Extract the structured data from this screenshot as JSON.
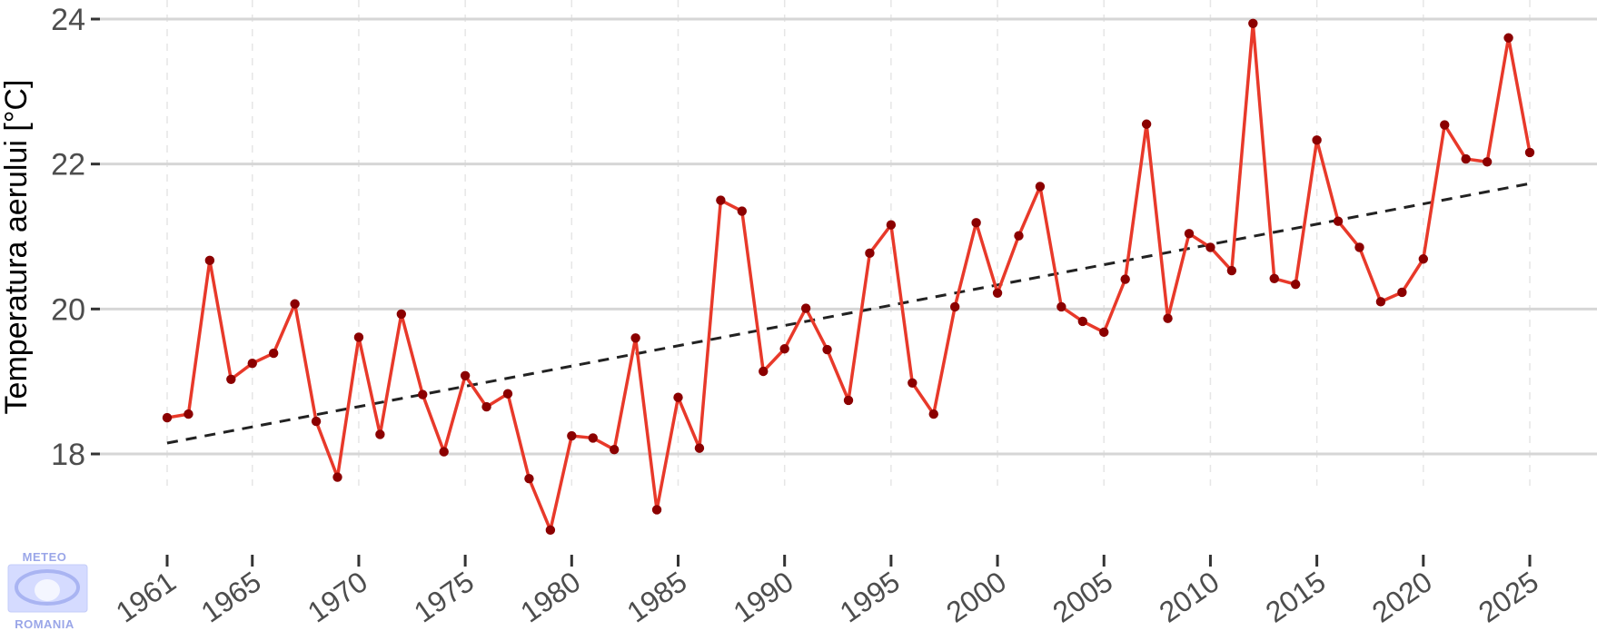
{
  "chart_data": {
    "type": "line",
    "title": "",
    "xlabel": "",
    "ylabel": "Temperatura aerului [°C]",
    "xlim": [
      1961,
      2025
    ],
    "ylim": [
      16.9,
      24.1
    ],
    "x_ticks": [
      1961,
      1965,
      1970,
      1975,
      1980,
      1985,
      1990,
      1995,
      2000,
      2005,
      2010,
      2015,
      2020,
      2025
    ],
    "x_tick_labels": [
      "1961",
      "1965",
      "1970",
      "1975",
      "1980",
      "1985",
      "1990",
      "1995",
      "2000",
      "2005",
      "2010",
      "2015",
      "2020",
      "2025"
    ],
    "y_ticks": [
      18,
      20,
      22,
      24
    ],
    "y_tick_labels": [
      "18",
      "20",
      "22",
      "24"
    ],
    "grid": true,
    "legend": "none",
    "x": [
      1961,
      1962,
      1963,
      1964,
      1965,
      1966,
      1967,
      1968,
      1969,
      1970,
      1971,
      1972,
      1973,
      1974,
      1975,
      1976,
      1977,
      1978,
      1979,
      1980,
      1981,
      1982,
      1983,
      1984,
      1985,
      1986,
      1987,
      1988,
      1989,
      1990,
      1991,
      1992,
      1993,
      1994,
      1995,
      1996,
      1997,
      1998,
      1999,
      2000,
      2001,
      2002,
      2003,
      2004,
      2005,
      2006,
      2007,
      2008,
      2009,
      2010,
      2011,
      2012,
      2013,
      2014,
      2015,
      2016,
      2017,
      2018,
      2019,
      2020,
      2021,
      2022,
      2023,
      2024,
      2025
    ],
    "series": [
      {
        "values": [
          18.5,
          18.55,
          20.67,
          19.03,
          19.25,
          19.39,
          20.07,
          18.45,
          17.68,
          19.61,
          18.27,
          19.93,
          18.82,
          18.03,
          19.08,
          18.65,
          18.83,
          17.66,
          16.95,
          18.25,
          18.22,
          18.06,
          19.6,
          17.23,
          18.78,
          18.08,
          21.5,
          21.35,
          19.14,
          19.45,
          20.01,
          19.44,
          18.74,
          20.77,
          21.16,
          18.98,
          18.55,
          20.03,
          21.19,
          20.22,
          21.01,
          21.69,
          20.03,
          19.83,
          19.68,
          20.41,
          22.55,
          19.87,
          21.04,
          20.85,
          20.53,
          23.94,
          20.42,
          20.34,
          22.33,
          21.21,
          20.85,
          20.1,
          20.23,
          20.69,
          22.54,
          22.07,
          22.03,
          23.74,
          22.16
        ],
        "color": "#e8392a",
        "marker_color": "#8b0000"
      }
    ],
    "trend": {
      "type": "linear",
      "start": [
        1961,
        18.15
      ],
      "end": [
        2025,
        21.73
      ],
      "style": "dashed",
      "color": "#222222"
    },
    "colors": {
      "grid_major": "#d6d6d6",
      "grid_minor": "#e6e6e6",
      "tick_text": "#4d4d4d"
    }
  },
  "logo": {
    "top_text": "METEO",
    "bottom_text": "ROMANIA",
    "color": "#9aa6e8"
  }
}
